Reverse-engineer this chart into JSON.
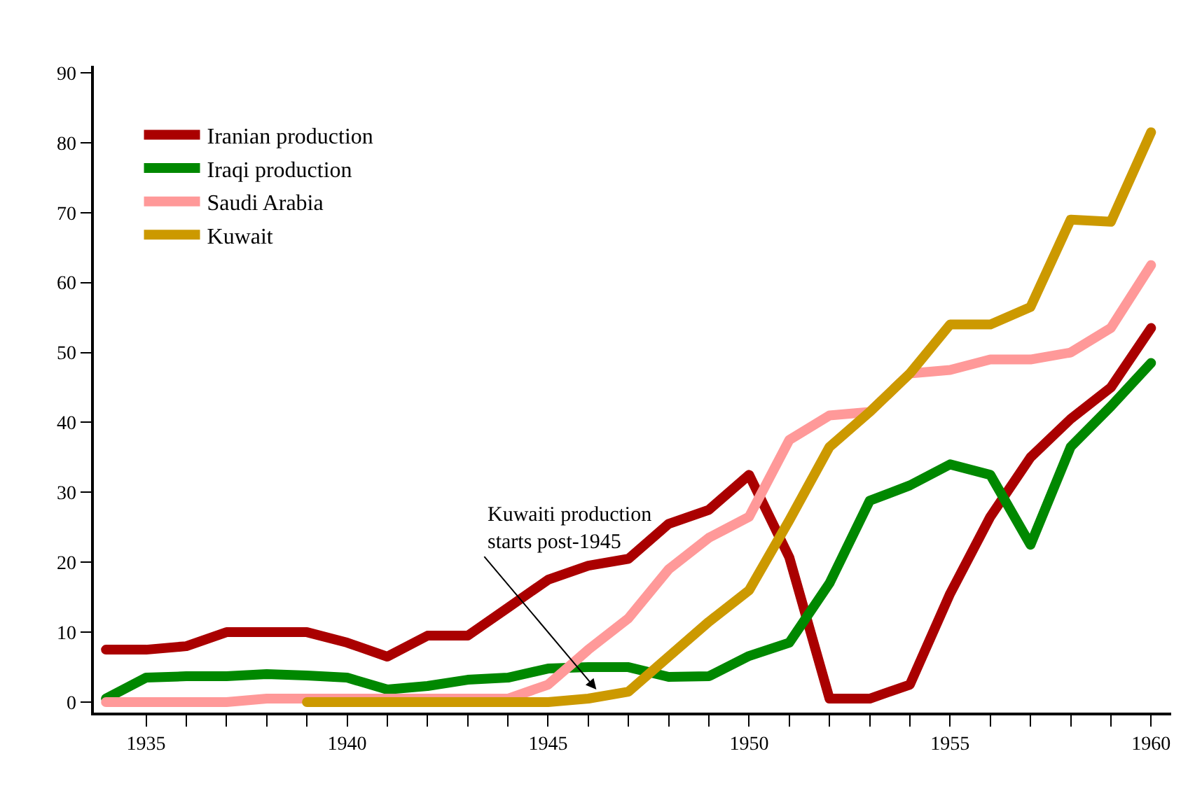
{
  "chart_data": {
    "type": "line",
    "x": [
      1934,
      1935,
      1936,
      1937,
      1938,
      1939,
      1940,
      1941,
      1942,
      1943,
      1944,
      1945,
      1946,
      1947,
      1948,
      1949,
      1950,
      1951,
      1952,
      1953,
      1954,
      1955,
      1956,
      1957,
      1958,
      1959,
      1960
    ],
    "series": [
      {
        "name": "Iranian production",
        "color": "#aa0000",
        "values": [
          7.5,
          7.5,
          8,
          10,
          10,
          10,
          8.5,
          6.5,
          9.5,
          9.5,
          13.5,
          17.5,
          19.5,
          20.5,
          25.5,
          27.5,
          32.5,
          20.7,
          0.5,
          0.5,
          2.5,
          15.5,
          26.5,
          35,
          40.5,
          45,
          53.5
        ]
      },
      {
        "name": "Iraqi production",
        "color": "#008800",
        "values": [
          0.5,
          3.5,
          3.7,
          3.7,
          4,
          3.8,
          3.5,
          1.8,
          2.3,
          3.2,
          3.5,
          4.8,
          5,
          5,
          3.6,
          3.7,
          6.6,
          8.5,
          17,
          28.8,
          31,
          34,
          32.5,
          22.5,
          36.5,
          42.3,
          48.5
        ]
      },
      {
        "name": "Saudi Arabia",
        "color": "#ff9999",
        "values": [
          0,
          0,
          0,
          0,
          0.5,
          0.5,
          0.5,
          0.5,
          0.5,
          0.5,
          0.5,
          2.5,
          7.5,
          12,
          19,
          23.5,
          26.5,
          37.5,
          41,
          41.5,
          47,
          47.5,
          49,
          49,
          50,
          53.5,
          62.5
        ]
      },
      {
        "name": "Kuwait",
        "color": "#cc9900",
        "values": [
          null,
          null,
          null,
          null,
          null,
          0,
          0,
          0,
          0,
          0,
          0,
          0,
          0.5,
          1.5,
          6.5,
          11.5,
          16,
          26,
          36.5,
          41.5,
          47,
          54,
          54,
          56.5,
          69,
          68.7,
          81.5
        ]
      }
    ],
    "xlim": [
      1933.7,
      1960.5
    ],
    "xticks": [
      {
        "value": 1935,
        "label": "1935"
      },
      {
        "value": 1936,
        "label": null
      },
      {
        "value": 1937,
        "label": null
      },
      {
        "value": 1938,
        "label": null
      },
      {
        "value": 1939,
        "label": null
      },
      {
        "value": 1940,
        "label": "1940"
      },
      {
        "value": 1941,
        "label": null
      },
      {
        "value": 1942,
        "label": null
      },
      {
        "value": 1943,
        "label": null
      },
      {
        "value": 1944,
        "label": null
      },
      {
        "value": 1945,
        "label": "1945"
      },
      {
        "value": 1946,
        "label": null
      },
      {
        "value": 1947,
        "label": null
      },
      {
        "value": 1948,
        "label": null
      },
      {
        "value": 1949,
        "label": null
      },
      {
        "value": 1950,
        "label": "1950"
      },
      {
        "value": 1951,
        "label": null
      },
      {
        "value": 1952,
        "label": null
      },
      {
        "value": 1953,
        "label": null
      },
      {
        "value": 1954,
        "label": null
      },
      {
        "value": 1955,
        "label": "1955"
      },
      {
        "value": 1956,
        "label": null
      },
      {
        "value": 1957,
        "label": null
      },
      {
        "value": 1958,
        "label": null
      },
      {
        "value": 1959,
        "label": null
      },
      {
        "value": 1960,
        "label": "1960"
      }
    ],
    "ylim": [
      -1.5,
      91
    ],
    "yticks": [
      0,
      10,
      20,
      30,
      40,
      50,
      60,
      70,
      80,
      90
    ],
    "annotations": [
      {
        "text": "Kuwaiti production\nstarts post-1945",
        "x": 1946.2,
        "y": 1.8
      }
    ],
    "legend": "top left",
    "marker": "none",
    "line_style": "solid"
  }
}
